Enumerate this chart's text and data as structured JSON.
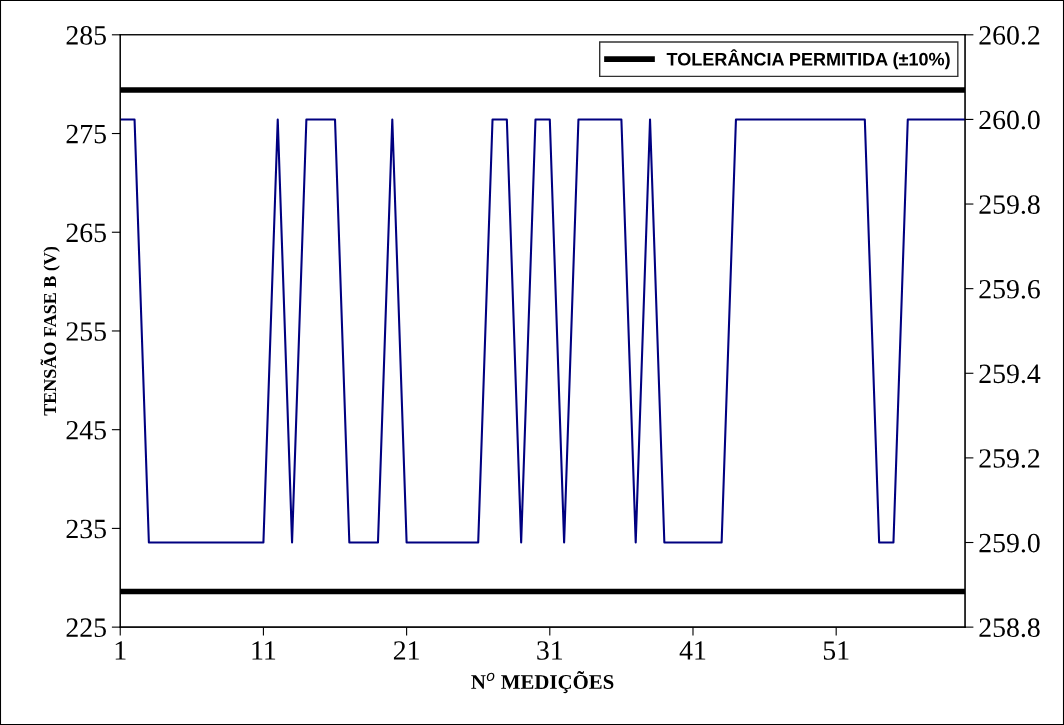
{
  "chart_data": {
    "type": "line",
    "xlabel": "N$^{o}$ MEDIÇÕES",
    "ylabel": "TENSÃO FASE B (V)",
    "x": [
      1,
      2,
      3,
      4,
      5,
      6,
      7,
      8,
      9,
      10,
      11,
      12,
      13,
      14,
      15,
      16,
      17,
      18,
      19,
      20,
      21,
      22,
      23,
      24,
      25,
      26,
      27,
      28,
      29,
      30,
      31,
      32,
      33,
      34,
      35,
      36,
      37,
      38,
      39,
      40,
      41,
      42,
      43,
      44,
      45,
      46,
      47,
      48,
      49,
      50,
      51,
      52,
      53,
      54,
      55,
      56,
      57,
      58,
      59,
      60
    ],
    "series": [
      {
        "color": "#000080",
        "axis": "y2",
        "values": [
          260,
          260,
          259,
          259,
          259,
          259,
          259,
          259,
          259,
          259,
          259,
          260,
          259,
          260,
          260,
          260,
          259,
          259,
          259,
          260,
          259,
          259,
          259,
          259,
          259,
          259,
          260,
          260,
          259,
          260,
          260,
          259,
          260,
          260,
          260,
          260,
          259,
          260,
          259,
          259,
          259,
          259,
          259,
          260,
          260,
          260,
          260,
          260,
          260,
          260,
          260,
          260,
          260,
          259,
          259,
          260,
          260,
          260,
          260,
          260
        ]
      }
    ],
    "xlim": [
      1,
      60
    ],
    "xticks": [
      1,
      11,
      21,
      31,
      41,
      51
    ],
    "ylim": [
      225,
      285
    ],
    "yticks": [
      225,
      235,
      245,
      255,
      265,
      275,
      285
    ],
    "y2lim": [
      258.8,
      260.2
    ],
    "y2ticks": [
      258.8,
      {
        "value": 259,
        "label": "259.0"
      },
      259.2,
      259.4,
      259.6,
      259.8,
      {
        "value": 260,
        "label": "260.0"
      },
      260.2
    ],
    "ref_lines": [
      {
        "axis": "y",
        "value": 279.4,
        "label": "TOLERÂNCIA PERMITIDA (±10%)",
        "color": "#000000"
      },
      {
        "axis": "y",
        "value": 228.6,
        "color": "#000000"
      }
    ],
    "grid": false,
    "legend": "top right",
    "marker": "none",
    "line_style": "solid"
  }
}
